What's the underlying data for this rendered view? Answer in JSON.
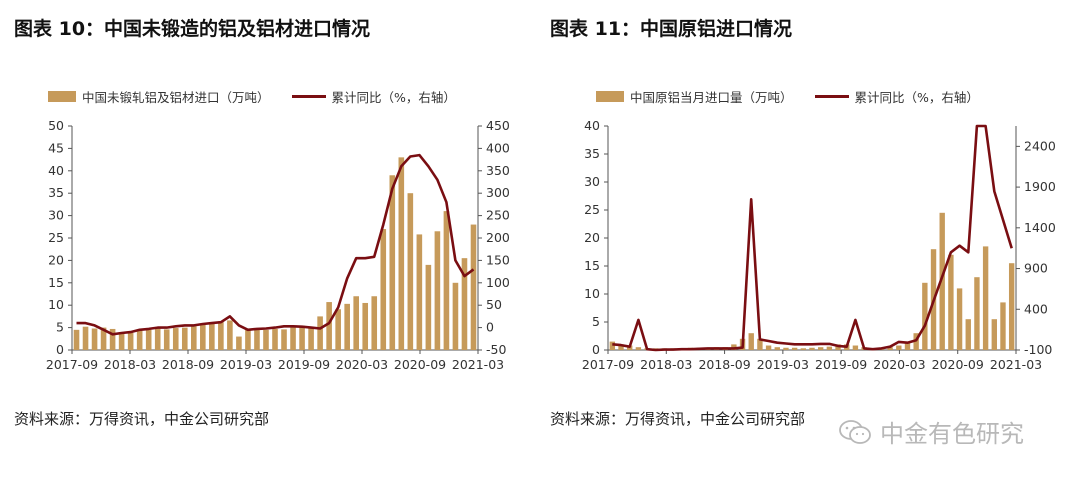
{
  "colors": {
    "bar": "#c69a5a",
    "line": "#7a0e12",
    "axis": "#555555",
    "watermark": "#b8b8b8"
  },
  "chart_data": [
    {
      "id": "chart-left",
      "type": "bar+line",
      "title": "图表 10：中国未锻造的铝及铝材进口情况",
      "legend_bar": "中国未锻轧铝及铝材进口（万吨）",
      "legend_line": "累计同比（%，右轴）",
      "x_tick_labels": [
        "2017-09",
        "2018-03",
        "2018-09",
        "2019-03",
        "2019-09",
        "2020-03",
        "2020-09",
        "2021-03"
      ],
      "y_left": {
        "min": 0,
        "max": 50,
        "ticks": [
          0,
          5,
          10,
          15,
          20,
          25,
          30,
          35,
          40,
          45,
          50
        ]
      },
      "y_right": {
        "min": -50,
        "max": 450,
        "ticks": [
          -50,
          0,
          50,
          100,
          150,
          200,
          250,
          300,
          350,
          400,
          450
        ]
      },
      "series": [
        {
          "name": "中国未锻轧铝及铝材进口（万吨）",
          "axis": "left",
          "values": [
            4.5,
            5.2,
            4.8,
            5.0,
            4.7,
            4.0,
            3.8,
            4.3,
            4.5,
            4.8,
            4.6,
            4.9,
            5.0,
            5.3,
            5.8,
            6.0,
            6.4,
            6.6,
            3.0,
            4.6,
            4.8,
            4.5,
            4.7,
            4.6,
            5.3,
            5.4,
            5.2,
            7.5,
            10.7,
            9.1,
            10.3,
            12.0,
            10.5,
            12.0,
            27.0,
            39.0,
            43.0,
            35.0,
            25.8,
            19.0,
            26.5,
            31.0,
            15.0,
            20.5,
            28.0
          ]
        },
        {
          "name": "累计同比（%，右轴）",
          "axis": "right",
          "values": [
            10,
            10,
            5,
            -5,
            -15,
            -12,
            -10,
            -5,
            -3,
            0,
            0,
            3,
            5,
            5,
            8,
            10,
            12,
            25,
            5,
            -5,
            -3,
            -2,
            0,
            3,
            3,
            2,
            0,
            -2,
            10,
            45,
            110,
            155,
            155,
            158,
            230,
            310,
            360,
            382,
            385,
            360,
            330,
            280,
            150,
            115,
            130
          ]
        }
      ]
    },
    {
      "id": "chart-right",
      "type": "bar+line",
      "title": "图表 11：中国原铝进口情况",
      "legend_bar": "中国原铝当月进口量（万吨）",
      "legend_line": "累计同比（%，右轴）",
      "x_tick_labels": [
        "2017-09",
        "2018-03",
        "2018-09",
        "2019-03",
        "2019-09",
        "2020-03",
        "2020-09",
        "2021-03"
      ],
      "y_left": {
        "min": 0,
        "max": 40,
        "ticks": [
          0,
          5,
          10,
          15,
          20,
          25,
          30,
          35,
          40
        ]
      },
      "y_right": {
        "min": -100,
        "max": 2650,
        "ticks": [
          -100,
          400,
          900,
          1400,
          1900,
          2400
        ]
      },
      "series": [
        {
          "name": "中国原铝当月进口量（万吨）",
          "axis": "left",
          "values": [
            1.5,
            1.0,
            0.8,
            0.5,
            0.3,
            0.3,
            0.3,
            0.3,
            0.3,
            0.4,
            0.4,
            0.4,
            0.5,
            0.5,
            1.0,
            2.0,
            3.0,
            2.0,
            0.8,
            0.5,
            0.4,
            0.4,
            0.3,
            0.4,
            0.5,
            0.6,
            1.0,
            1.0,
            0.8,
            0.5,
            0.3,
            0.3,
            0.5,
            0.8,
            1.5,
            3.0,
            12.0,
            18.0,
            24.5,
            17.0,
            11.0,
            5.5,
            13.0,
            18.5,
            5.5,
            8.5,
            15.5
          ]
        },
        {
          "name": "累计同比（%，右轴）",
          "axis": "right",
          "values": [
            -30,
            -40,
            -60,
            270,
            -90,
            -100,
            -95,
            -95,
            -90,
            -90,
            -85,
            -80,
            -80,
            -80,
            -80,
            -70,
            1750,
            30,
            10,
            -10,
            -20,
            -30,
            -30,
            -30,
            -25,
            -25,
            -50,
            -60,
            270,
            -80,
            -90,
            -80,
            -60,
            0,
            -10,
            20,
            200,
            500,
            800,
            1100,
            1180,
            1100,
            2650,
            2650,
            1850,
            1500,
            1150
          ]
        }
      ]
    }
  ],
  "left_panel": {
    "source": "资料来源：万得资讯，中金公司研究部"
  },
  "right_panel": {
    "source": "资料来源：万得资讯，中金公司研究部"
  },
  "watermark": {
    "text": "中金有色研究",
    "icon": "wechat-icon"
  }
}
